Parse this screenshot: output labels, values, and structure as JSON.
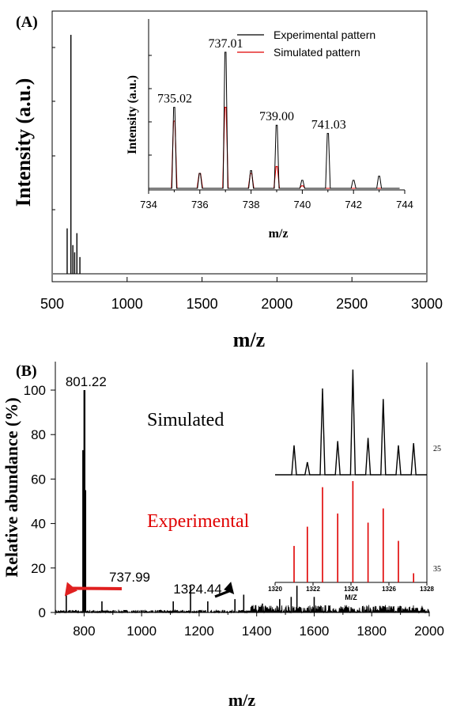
{
  "panel_a": {
    "label": "(A)",
    "xlabel": "m/z",
    "ylabel": "Intensity (a.u.)",
    "inset": {
      "xlabel": "m/z",
      "ylabel": "Intensity (a.u.)",
      "legend": [
        "Experimental  pattern",
        "Simulated pattern"
      ]
    }
  },
  "panel_b": {
    "label": "(B)",
    "xlabel": "m/z",
    "ylabel": "Relative abundance (%)",
    "inset": {
      "xlabel": "M/Z",
      "simulated_label": "Simulated",
      "experimental_label": "Experimental",
      "right_label_top": "25",
      "right_label_bottom": "35"
    }
  },
  "colors": {
    "experimental": "#000000",
    "simulated": "#e00000",
    "arrow_red": "#e02020"
  },
  "chart_data": [
    {
      "type": "line",
      "title": "",
      "xlabel": "m/z",
      "ylabel": "Intensity (a.u.)",
      "xlim": [
        500,
        3000
      ],
      "xticks": [
        500,
        1000,
        1500,
        2000,
        2500,
        3000
      ],
      "ylim": [
        0,
        100
      ],
      "sticks": [
        [
          600,
          19
        ],
        [
          625,
          100
        ],
        [
          638,
          12
        ],
        [
          650,
          9
        ],
        [
          665,
          17
        ],
        [
          685,
          7
        ]
      ]
    },
    {
      "type": "line",
      "title": "",
      "xlabel": "m/z",
      "ylabel": "Intensity (a.u.)",
      "xlim": [
        734,
        744
      ],
      "xticks": [
        734,
        736,
        738,
        740,
        742,
        744
      ],
      "ylim": [
        0,
        100
      ],
      "annotations": [
        {
          "text": "735.02",
          "x": 735.02
        },
        {
          "text": "737.01",
          "x": 737.01
        },
        {
          "text": "739.00",
          "x": 739.0
        },
        {
          "text": "741.03",
          "x": 741.03
        }
      ],
      "series": [
        {
          "name": "Experimental  pattern",
          "peaks": [
            [
              735.0,
              60
            ],
            [
              736.0,
              12
            ],
            [
              737.0,
              100
            ],
            [
              738.0,
              14
            ],
            [
              739.0,
              47
            ],
            [
              740.0,
              7
            ],
            [
              741.0,
              41
            ],
            [
              742.0,
              7
            ],
            [
              743.0,
              10
            ]
          ]
        },
        {
          "name": "Simulated pattern",
          "peaks": [
            [
              735.0,
              50
            ],
            [
              736.0,
              12
            ],
            [
              737.0,
              60
            ],
            [
              738.0,
              12
            ],
            [
              739.0,
              17
            ],
            [
              740.0,
              3
            ]
          ]
        }
      ]
    },
    {
      "type": "line",
      "title": "",
      "xlabel": "m/z",
      "ylabel": "Relative abundance (%)",
      "xlim": [
        700,
        2000
      ],
      "xticks": [
        800,
        1000,
        1200,
        1400,
        1600,
        1800,
        2000
      ],
      "ylim": [
        0,
        105
      ],
      "yticks": [
        0,
        20,
        40,
        60,
        80,
        100
      ],
      "annotations": [
        {
          "text": "801.22",
          "x": 801.22,
          "y": 100
        },
        {
          "text": "737.99",
          "x": 737.99,
          "y": 8
        },
        {
          "text": "1324.44",
          "x": 1324.44,
          "y": 6
        }
      ],
      "peaks": [
        [
          737.99,
          8
        ],
        [
          797,
          73
        ],
        [
          801.22,
          100
        ],
        [
          804,
          55
        ],
        [
          862,
          5
        ],
        [
          1110,
          5
        ],
        [
          1170,
          12
        ],
        [
          1230,
          5
        ],
        [
          1324.44,
          6
        ],
        [
          1355,
          8
        ],
        [
          1420,
          4
        ],
        [
          1480,
          6
        ],
        [
          1520,
          7
        ],
        [
          1540,
          12
        ],
        [
          1600,
          7
        ]
      ]
    },
    {
      "type": "bar",
      "title": "",
      "xlabel": "M/Z",
      "xlim": [
        1320,
        1328
      ],
      "xticks": [
        1320,
        1322,
        1324,
        1326,
        1328
      ],
      "series": [
        {
          "name": "Simulated",
          "x": [
            1321,
            1321.7,
            1322.5,
            1323.3,
            1324.1,
            1324.9,
            1325.7,
            1326.5,
            1327.3
          ],
          "values": [
            28,
            12,
            82,
            32,
            100,
            35,
            72,
            28,
            30
          ]
        },
        {
          "name": "Experimental",
          "x": [
            1321,
            1321.7,
            1322.5,
            1323.3,
            1324.1,
            1324.9,
            1325.7,
            1326.5,
            1327.3
          ],
          "values": [
            36,
            55,
            94,
            68,
            100,
            59,
            73,
            41,
            9
          ]
        }
      ]
    }
  ]
}
